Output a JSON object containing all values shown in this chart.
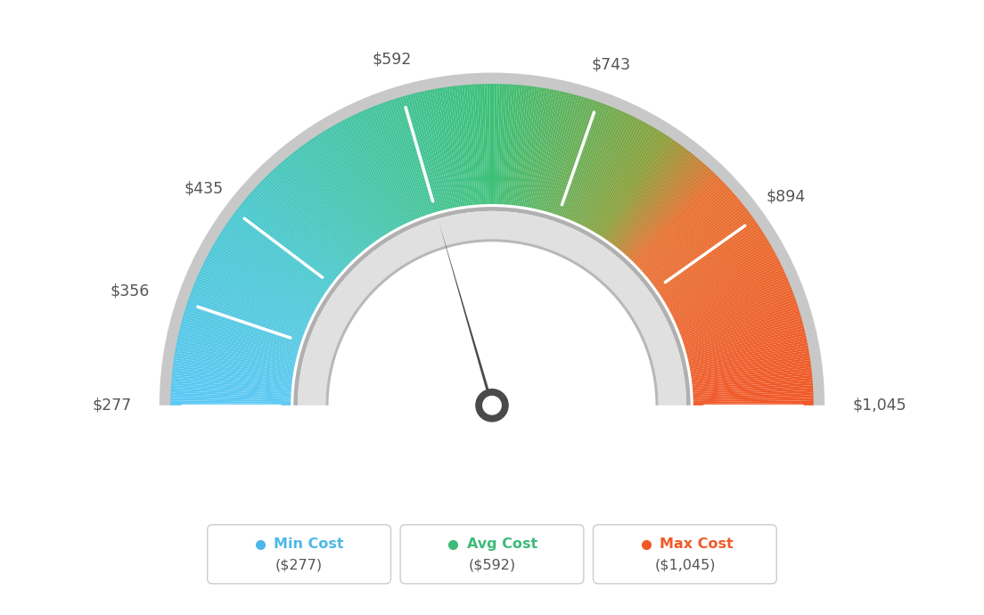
{
  "min_val": 277,
  "max_val": 1045,
  "avg_val": 592,
  "tick_labels": [
    "$277",
    "$356",
    "$435",
    "$592",
    "$743",
    "$894",
    "$1,045"
  ],
  "tick_values": [
    277,
    356,
    435,
    592,
    743,
    894,
    1045
  ],
  "legend": [
    {
      "label": "Min Cost",
      "value": "($277)",
      "color": "#4db8e8"
    },
    {
      "label": "Avg Cost",
      "value": "($592)",
      "color": "#3dba7a"
    },
    {
      "label": "Max Cost",
      "value": "($1,045)",
      "color": "#f05a28"
    }
  ],
  "bg_color": "#ffffff",
  "needle_color": "#4a4a4a"
}
